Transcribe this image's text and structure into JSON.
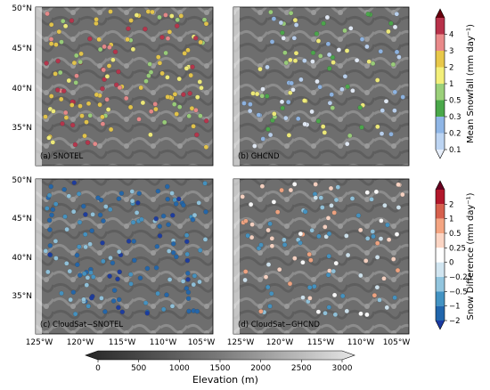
{
  "panels": [
    {
      "label": "(a) SNOTEL",
      "kind": "mean"
    },
    {
      "label": "(b) GHCND",
      "kind": "mean"
    },
    {
      "label": "(c) CloudSat−SNOTEL",
      "kind": "diff"
    },
    {
      "label": "(d) CloudSat−GHCND",
      "kind": "diff"
    }
  ],
  "lat_ticks": [
    "50°N",
    "45°N",
    "40°N",
    "35°N"
  ],
  "lon_ticks": [
    "125°W",
    "120°W",
    "115°W",
    "110°W",
    "105°W"
  ],
  "colorbar_top": {
    "label": "Mean Snowfall (mm day⁻¹)",
    "ticks": [
      "4",
      "3",
      "2",
      "1",
      "0.5",
      "0.3",
      "0.2",
      "0.1"
    ],
    "colors": [
      "#67000d",
      "#b8324a",
      "#e98a8a",
      "#e8c84a",
      "#f3ef7a",
      "#9bd07a",
      "#4aa84a",
      "#8fb6e6",
      "#bcd4f2",
      "#e6eefa"
    ]
  },
  "colorbar_bottom": {
    "label": "Snow Difference (mm day⁻¹)",
    "ticks": [
      "2",
      "1",
      "0.5",
      "0.25",
      "0",
      "−0.25",
      "−0.5",
      "−1",
      "−2"
    ],
    "colors": [
      "#67001f",
      "#b2182b",
      "#d6604d",
      "#f4a582",
      "#fbd5c4",
      "#ffffff",
      "#d1e5f0",
      "#92c5de",
      "#4393c3",
      "#2166ac",
      "#1a3aa0"
    ]
  },
  "colorbar_elev": {
    "label": "Elevation (m)",
    "ticks": [
      "0",
      "500",
      "1000",
      "1500",
      "2000",
      "2500",
      "3000"
    ]
  }
}
